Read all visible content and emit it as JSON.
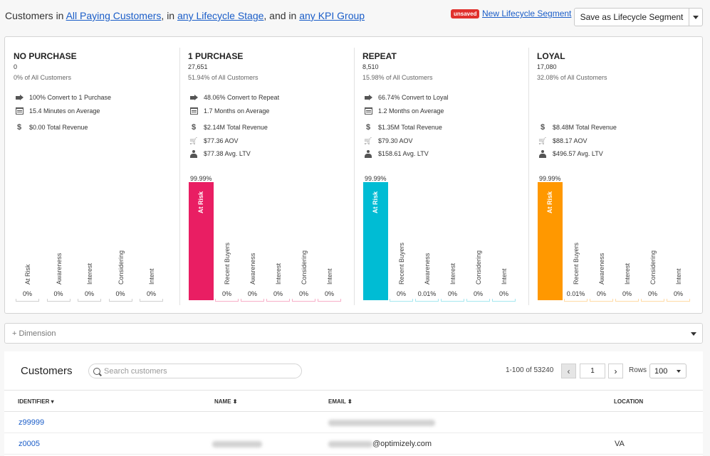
{
  "filters": {
    "prefix": "Customers in",
    "segment": "All Paying Customers",
    "sep1": ", in",
    "lifecycle": "any Lifecycle Stage",
    "sep2": ", and in",
    "kpi": "any KPI Group"
  },
  "header_actions": {
    "unsaved_badge": "unsaved",
    "new_segment_link": "New Lifecycle Segment",
    "save_button": "Save as Lifecycle Segment"
  },
  "stages": [
    {
      "title": "NO PURCHASE",
      "count": "0",
      "percent_of_all": "0% of All Customers",
      "metrics": [
        {
          "icon": "arrow-right-icon",
          "text": "100% Convert to 1 Purchase"
        },
        {
          "icon": "calendar-icon",
          "text": "15.4 Minutes on Average"
        },
        {
          "icon": "dollar-icon",
          "text": "$0.00 Total Revenue"
        }
      ],
      "bars": [
        {
          "label": "At Risk",
          "value": "0%",
          "fraction": 0
        },
        {
          "label": "Awareness",
          "value": "0%",
          "fraction": 0
        },
        {
          "label": "Interest",
          "value": "0%",
          "fraction": 0
        },
        {
          "label": "Considering",
          "value": "0%",
          "fraction": 0
        },
        {
          "label": "Intent",
          "value": "0%",
          "fraction": 0
        }
      ],
      "color": "#cccccc"
    },
    {
      "title": "1 PURCHASE",
      "count": "27,651",
      "percent_of_all": "51.94% of All Customers",
      "metrics": [
        {
          "icon": "arrow-right-icon",
          "text": "48.06% Convert to Repeat"
        },
        {
          "icon": "calendar-icon",
          "text": "1.7 Months on Average"
        },
        {
          "icon": "dollar-icon",
          "text": "$2.14M Total Revenue"
        },
        {
          "icon": "cart-icon",
          "text": "$77.36 AOV"
        },
        {
          "icon": "user-icon",
          "text": "$77.38 Avg. LTV"
        }
      ],
      "bars": [
        {
          "label": "At Risk",
          "value": "99.99%",
          "fraction": 0.9999
        },
        {
          "label": "Recent Buyers",
          "value": "0%",
          "fraction": 0
        },
        {
          "label": "Awareness",
          "value": "0%",
          "fraction": 0
        },
        {
          "label": "Interest",
          "value": "0%",
          "fraction": 0
        },
        {
          "label": "Considering",
          "value": "0%",
          "fraction": 0
        },
        {
          "label": "Intent",
          "value": "0%",
          "fraction": 0
        }
      ],
      "color": "#e91e63"
    },
    {
      "title": "REPEAT",
      "count": "8,510",
      "percent_of_all": "15.98% of All Customers",
      "metrics": [
        {
          "icon": "arrow-right-icon",
          "text": "66.74% Convert to Loyal"
        },
        {
          "icon": "calendar-icon",
          "text": "1.2 Months on Average"
        },
        {
          "icon": "dollar-icon",
          "text": "$1.35M Total Revenue"
        },
        {
          "icon": "cart-icon",
          "text": "$79.30 AOV"
        },
        {
          "icon": "user-icon",
          "text": "$158.61 Avg. LTV"
        }
      ],
      "bars": [
        {
          "label": "At Risk",
          "value": "99.99%",
          "fraction": 0.9999
        },
        {
          "label": "Recent Buyers",
          "value": "0%",
          "fraction": 0
        },
        {
          "label": "Awareness",
          "value": "0.01%",
          "fraction": 0.0001
        },
        {
          "label": "Interest",
          "value": "0%",
          "fraction": 0
        },
        {
          "label": "Considering",
          "value": "0%",
          "fraction": 0
        },
        {
          "label": "Intent",
          "value": "0%",
          "fraction": 0
        }
      ],
      "color": "#00bcd4"
    },
    {
      "title": "LOYAL",
      "count": "17,080",
      "percent_of_all": "32.08% of All Customers",
      "metrics": [
        {
          "icon": "dollar-icon",
          "text": "$8.48M Total Revenue"
        },
        {
          "icon": "cart-icon",
          "text": "$88.17 AOV"
        },
        {
          "icon": "user-icon",
          "text": "$496.57 Avg. LTV"
        }
      ],
      "bars": [
        {
          "label": "At Risk",
          "value": "99.99%",
          "fraction": 0.9999
        },
        {
          "label": "Recent Buyers",
          "value": "0.01%",
          "fraction": 0.0001
        },
        {
          "label": "Awareness",
          "value": "0%",
          "fraction": 0
        },
        {
          "label": "Interest",
          "value": "0%",
          "fraction": 0
        },
        {
          "label": "Considering",
          "value": "0%",
          "fraction": 0
        },
        {
          "label": "Intent",
          "value": "0%",
          "fraction": 0
        }
      ],
      "color": "#ff9800"
    }
  ],
  "dimension": {
    "label": "+ Dimension"
  },
  "customers": {
    "title": "Customers",
    "search_placeholder": "Search customers",
    "range_text": "1-100 of 53240",
    "page": "1",
    "rows_label": "Rows",
    "rows_value": "100",
    "columns": {
      "identifier": "IDENTIFIER",
      "name": "NAME",
      "email": "EMAIL",
      "location": "LOCATION"
    },
    "rows": [
      {
        "identifier": "z99999",
        "email_suffix": "",
        "location": ""
      },
      {
        "identifier": "z0005",
        "email_suffix": "@optimizely.com",
        "location": "VA"
      }
    ]
  }
}
